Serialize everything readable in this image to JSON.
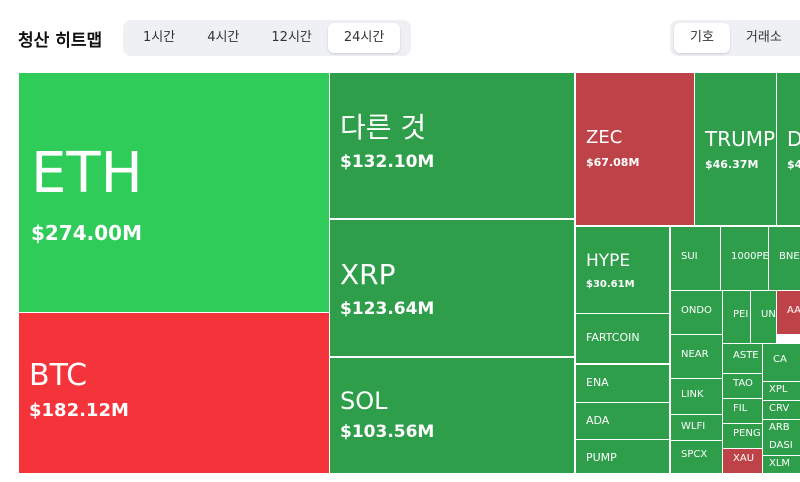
{
  "header": {
    "title": "청산 히트맵",
    "time_tabs": [
      "1시간",
      "4시간",
      "12시간",
      "24시간"
    ],
    "active_time_tab": 3,
    "group_tabs": [
      "기호",
      "거래소"
    ],
    "active_group_tab": 0
  },
  "tiles": [
    {
      "label": "ETH",
      "value": "$274.00M",
      "color": "#30cc5a"
    },
    {
      "label": "BTC",
      "value": "$182.12M",
      "color": "#f5333a"
    },
    {
      "label": "다른 것",
      "value": "$132.10M",
      "color": "#2e9e4a"
    },
    {
      "label": "XRP",
      "value": "$123.64M",
      "color": "#2e9e4a"
    },
    {
      "label": "SOL",
      "value": "$103.56M",
      "color": "#2e9e4a"
    },
    {
      "label": "ZEC",
      "value": "$67.08M",
      "color": "#be4349"
    },
    {
      "label": "TRUMP",
      "value": "$46.37M",
      "color": "#2e9e4a"
    },
    {
      "label": "D",
      "value": "$4",
      "color": "#2e9e4a"
    },
    {
      "label": "HYPE",
      "value": "$30.61M",
      "color": "#2e9e4a"
    },
    {
      "label": "FARTCOIN",
      "color": "#2e9e4a"
    },
    {
      "label": "ENA",
      "color": "#2e9e4a"
    },
    {
      "label": "ADA",
      "color": "#2e9e4a"
    },
    {
      "label": "PUMP",
      "color": "#2e9e4a"
    },
    {
      "label": "SUI",
      "color": "#2e9e4a"
    },
    {
      "label": "1000PE",
      "color": "#2e9e4a"
    },
    {
      "label": "BNE",
      "color": "#2e9e4a"
    },
    {
      "label": "ONDO",
      "color": "#2e9e4a"
    },
    {
      "label": "PEI",
      "color": "#2e9e4a"
    },
    {
      "label": "UN",
      "color": "#2e9e4a"
    },
    {
      "label": "AA",
      "color": "#be4349"
    },
    {
      "label": "NEAR",
      "color": "#2e9e4a"
    },
    {
      "label": "LINK",
      "color": "#2e9e4a"
    },
    {
      "label": "WLFI",
      "color": "#2e9e4a"
    },
    {
      "label": "SPCX",
      "color": "#2e9e4a"
    },
    {
      "label": "ASTE",
      "color": "#2e9e4a"
    },
    {
      "label": "TAO",
      "color": "#2e9e4a"
    },
    {
      "label": "FIL",
      "color": "#2e9e4a"
    },
    {
      "label": "PENG",
      "color": "#2e9e4a"
    },
    {
      "label": "XAU",
      "color": "#be4349"
    },
    {
      "label": "CA",
      "color": "#2e9e4a"
    },
    {
      "label": "XPL",
      "color": "#2e9e4a"
    },
    {
      "label": "CRV",
      "color": "#2e9e4a"
    },
    {
      "label": "ARB",
      "color": "#2e9e4a"
    },
    {
      "label": "DASI",
      "color": "#2e9e4a"
    },
    {
      "label": "XLM",
      "color": "#2e9e4a"
    }
  ]
}
